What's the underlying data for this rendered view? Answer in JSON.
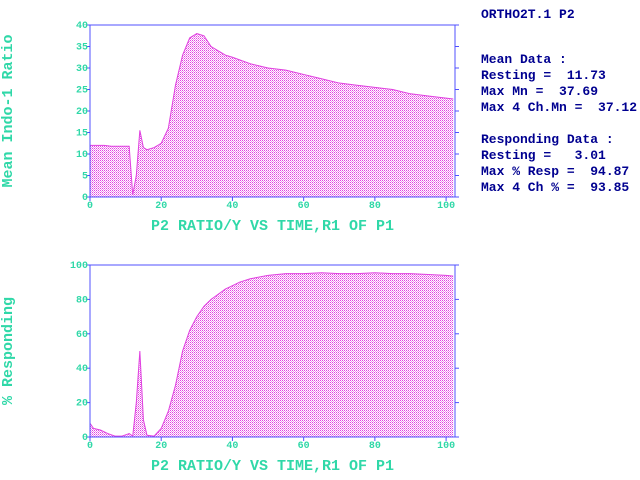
{
  "chart_data": [
    {
      "type": "area",
      "y_label": "Mean Indo-1 Ratio",
      "x_label": "P2 RATIO/Y VS TIME,R1 OF P1",
      "x": [
        0,
        2,
        4,
        6,
        8,
        10,
        11,
        12,
        13,
        14,
        15,
        16,
        18,
        20,
        22,
        24,
        26,
        28,
        30,
        32,
        34,
        36,
        38,
        40,
        45,
        50,
        55,
        60,
        65,
        70,
        75,
        80,
        85,
        90,
        95,
        100,
        102
      ],
      "values": [
        12,
        12,
        12,
        11.8,
        11.8,
        11.8,
        11.8,
        0.5,
        5,
        15.5,
        11.5,
        11,
        11.5,
        12.5,
        16,
        26,
        33,
        37,
        38,
        37.5,
        35,
        34,
        33,
        32.5,
        31,
        30,
        29.5,
        28.5,
        27.5,
        26.5,
        26,
        25.5,
        25,
        24,
        23.5,
        23,
        22.8
      ],
      "color": "#e040e0",
      "xlim": [
        0,
        102.5
      ],
      "ylim": [
        0,
        40
      ],
      "xticks": [
        0,
        20,
        40,
        60,
        80,
        100
      ],
      "yticks": [
        0,
        5,
        10,
        15,
        20,
        25,
        30,
        35,
        40
      ]
    },
    {
      "type": "area",
      "y_label": "% Responding",
      "x_label": "P2 RATIO/Y VS TIME,R1 OF P1",
      "x": [
        0,
        1,
        3,
        5,
        7,
        9,
        11,
        12,
        13,
        14,
        15,
        16,
        18,
        20,
        22,
        24,
        26,
        28,
        30,
        32,
        34,
        36,
        38,
        40,
        42,
        45,
        50,
        55,
        60,
        65,
        70,
        75,
        80,
        85,
        90,
        95,
        100,
        102
      ],
      "values": [
        8,
        5,
        4,
        2,
        0.5,
        0.5,
        2,
        0.5,
        20,
        50,
        10,
        1,
        0.5,
        5,
        15,
        30,
        50,
        62,
        70,
        76,
        80,
        83,
        86,
        88,
        90,
        92,
        94,
        95,
        95,
        95.5,
        95,
        95,
        95.5,
        95,
        95,
        94.5,
        94,
        93.5
      ],
      "color": "#e040e0",
      "xlim": [
        0,
        102.5
      ],
      "ylim": [
        0,
        100
      ],
      "xticks": [
        0,
        20,
        40,
        60,
        80,
        100
      ],
      "yticks": [
        0,
        20,
        40,
        60,
        80,
        100
      ]
    }
  ],
  "info_panel": {
    "title": "ORTHO2T.1 P2",
    "sections": [
      {
        "heading": "Mean Data :",
        "lines": [
          "Resting =  11.73",
          "Max Mn =  37.69",
          "Max 4 Ch.Mn =  37.12"
        ]
      },
      {
        "heading": "Responding Data :",
        "lines": [
          "Resting =   3.01",
          "Max % Resp =  94.87",
          "Max 4 Ch % =  93.85"
        ]
      }
    ]
  }
}
